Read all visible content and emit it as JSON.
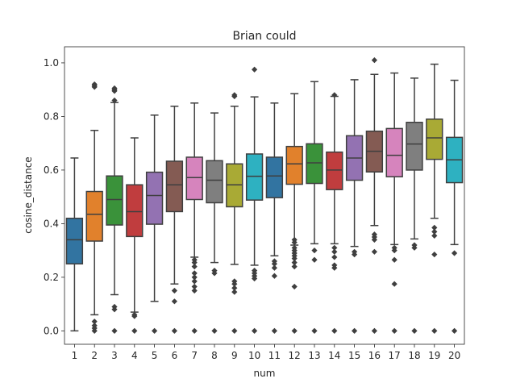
{
  "chart_data": {
    "type": "box",
    "title": "Brian could",
    "xlabel": "num",
    "ylabel": "cosine_distance",
    "ylim": [
      -0.05,
      1.06
    ],
    "yticks": [
      "0.0",
      "0.2",
      "0.4",
      "0.6",
      "0.8",
      "1.0"
    ],
    "categories": [
      "1",
      "2",
      "3",
      "4",
      "5",
      "6",
      "7",
      "8",
      "9",
      "10",
      "11",
      "12",
      "13",
      "14",
      "15",
      "16",
      "17",
      "18",
      "19",
      "20"
    ],
    "boxes": [
      {
        "whisker_low": 0.0,
        "q1": 0.25,
        "median": 0.34,
        "q3": 0.42,
        "whisker_high": 0.645,
        "outliers": []
      },
      {
        "whisker_low": 0.06,
        "q1": 0.335,
        "median": 0.435,
        "q3": 0.52,
        "whisker_high": 0.748,
        "outliers": [
          0.0,
          0.01,
          0.02,
          0.035,
          0.91,
          0.915,
          0.92
        ]
      },
      {
        "whisker_low": 0.135,
        "q1": 0.395,
        "median": 0.49,
        "q3": 0.578,
        "whisker_high": 0.852,
        "outliers": [
          0.0,
          0.08,
          0.09,
          0.86,
          0.895,
          0.9,
          0.905
        ]
      },
      {
        "whisker_low": 0.07,
        "q1": 0.352,
        "median": 0.445,
        "q3": 0.545,
        "whisker_high": 0.72,
        "outliers": [
          0.0,
          0.055,
          0.06
        ]
      },
      {
        "whisker_low": 0.11,
        "q1": 0.398,
        "median": 0.505,
        "q3": 0.592,
        "whisker_high": 0.805,
        "outliers": [
          0.0
        ]
      },
      {
        "whisker_low": 0.175,
        "q1": 0.445,
        "median": 0.545,
        "q3": 0.633,
        "whisker_high": 0.838,
        "outliers": [
          0.0,
          0.11,
          0.15
        ]
      },
      {
        "whisker_low": 0.275,
        "q1": 0.49,
        "median": 0.572,
        "q3": 0.648,
        "whisker_high": 0.85,
        "outliers": [
          0.0,
          0.15,
          0.165,
          0.185,
          0.2,
          0.215,
          0.24,
          0.255,
          0.265
        ]
      },
      {
        "whisker_low": 0.255,
        "q1": 0.478,
        "median": 0.562,
        "q3": 0.635,
        "whisker_high": 0.813,
        "outliers": [
          0.0,
          0.215,
          0.225
        ]
      },
      {
        "whisker_low": 0.248,
        "q1": 0.463,
        "median": 0.545,
        "q3": 0.623,
        "whisker_high": 0.838,
        "outliers": [
          0.0,
          0.145,
          0.16,
          0.175,
          0.185,
          0.875,
          0.88
        ]
      },
      {
        "whisker_low": 0.245,
        "q1": 0.488,
        "median": 0.577,
        "q3": 0.66,
        "whisker_high": 0.873,
        "outliers": [
          0.0,
          0.195,
          0.205,
          0.215,
          0.225,
          0.975
        ]
      },
      {
        "whisker_low": 0.28,
        "q1": 0.497,
        "median": 0.578,
        "q3": 0.648,
        "whisker_high": 0.85,
        "outliers": [
          0.0,
          0.205,
          0.235,
          0.25,
          0.26
        ]
      },
      {
        "whisker_low": 0.32,
        "q1": 0.547,
        "median": 0.623,
        "q3": 0.688,
        "whisker_high": 0.885,
        "outliers": [
          0.0,
          0.165,
          0.24,
          0.255,
          0.27,
          0.28,
          0.29,
          0.3,
          0.31,
          0.33,
          0.34
        ]
      },
      {
        "whisker_low": 0.325,
        "q1": 0.55,
        "median": 0.627,
        "q3": 0.698,
        "whisker_high": 0.93,
        "outliers": [
          0.0,
          0.265,
          0.3
        ]
      },
      {
        "whisker_low": 0.325,
        "q1": 0.527,
        "median": 0.6,
        "q3": 0.667,
        "whisker_high": 0.875,
        "outliers": [
          0.0,
          0.235,
          0.245,
          0.275,
          0.295,
          0.31,
          0.88
        ]
      },
      {
        "whisker_low": 0.315,
        "q1": 0.562,
        "median": 0.645,
        "q3": 0.728,
        "whisker_high": 0.937,
        "outliers": [
          0.0,
          0.285,
          0.295
        ]
      },
      {
        "whisker_low": 0.393,
        "q1": 0.593,
        "median": 0.67,
        "q3": 0.745,
        "whisker_high": 0.957,
        "outliers": [
          0.0,
          0.295,
          0.34,
          0.35,
          0.36,
          1.01
        ]
      },
      {
        "whisker_low": 0.322,
        "q1": 0.575,
        "median": 0.655,
        "q3": 0.755,
        "whisker_high": 0.962,
        "outliers": [
          0.0,
          0.175,
          0.265,
          0.3,
          0.31
        ]
      },
      {
        "whisker_low": 0.343,
        "q1": 0.6,
        "median": 0.697,
        "q3": 0.778,
        "whisker_high": 0.943,
        "outliers": [
          0.0,
          0.31,
          0.32
        ]
      },
      {
        "whisker_low": 0.42,
        "q1": 0.64,
        "median": 0.72,
        "q3": 0.79,
        "whisker_high": 0.995,
        "outliers": [
          0.0,
          0.285,
          0.355,
          0.37,
          0.385
        ]
      },
      {
        "whisker_low": 0.322,
        "q1": 0.553,
        "median": 0.638,
        "q3": 0.722,
        "whisker_high": 0.935,
        "outliers": [
          0.0,
          0.29
        ]
      }
    ],
    "colors": [
      "#3274a1",
      "#e1812c",
      "#3a923a",
      "#c03d3e",
      "#9372b2",
      "#845b53",
      "#d684bd",
      "#7f7f7f",
      "#a9aa35",
      "#2eb1c1",
      "#3274a1",
      "#e1812c",
      "#3a923a",
      "#c03d3e",
      "#9372b2",
      "#845b53",
      "#d684bd",
      "#7f7f7f",
      "#a9aa35",
      "#2eb1c1"
    ],
    "grid": false,
    "legend": "none"
  }
}
